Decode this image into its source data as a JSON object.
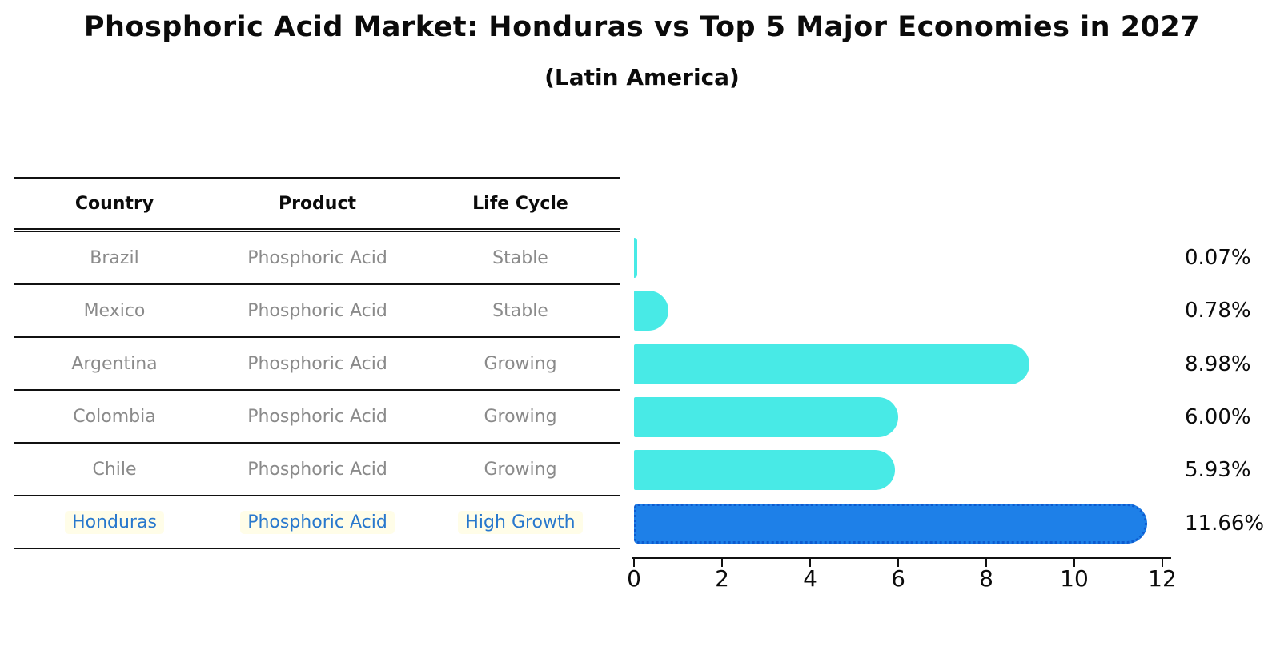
{
  "title": "Phosphoric Acid Market: Honduras vs Top 5 Major Economies in 2027",
  "subtitle": "(Latin America)",
  "table": {
    "headers": [
      "Country",
      "Product",
      "Life Cycle"
    ],
    "rows": [
      {
        "country": "Brazil",
        "product": "Phosphoric Acid",
        "life_cycle": "Stable",
        "highlight": false
      },
      {
        "country": "Mexico",
        "product": "Phosphoric Acid",
        "life_cycle": "Stable",
        "highlight": false
      },
      {
        "country": "Argentina",
        "product": "Phosphoric Acid",
        "life_cycle": "Growing",
        "highlight": false
      },
      {
        "country": "Colombia",
        "product": "Phosphoric Acid",
        "life_cycle": "Growing",
        "highlight": false
      },
      {
        "country": "Chile",
        "product": "Phosphoric Acid",
        "life_cycle": "Growing",
        "highlight": false
      },
      {
        "country": "Honduras",
        "product": "Phosphoric Acid",
        "life_cycle": "High Growth",
        "highlight": true
      }
    ]
  },
  "chart_data": {
    "type": "bar",
    "orientation": "horizontal",
    "title": "Phosphoric Acid Market: Honduras vs Top 5 Major Economies in 2027 (Latin America)",
    "categories": [
      "Brazil",
      "Mexico",
      "Argentina",
      "Colombia",
      "Chile",
      "Honduras"
    ],
    "values": [
      0.07,
      0.78,
      8.98,
      6.0,
      5.93,
      11.66
    ],
    "value_labels": [
      "0.07%",
      "0.78%",
      "8.98%",
      "6.00%",
      "5.93%",
      "11.66%"
    ],
    "xlabel": "",
    "ylabel": "",
    "xlim": [
      0,
      12
    ],
    "x_ticks": [
      0,
      2,
      4,
      6,
      8,
      10,
      12
    ],
    "grid": false,
    "legend": false,
    "bar_color": "#48EAE6",
    "highlight_index": 5,
    "highlight_color": "#1E80E8",
    "highlight_border_color": "#0D5BD0"
  },
  "colors": {
    "row_text": "#8A8A8A",
    "header_text": "#0B0B0B",
    "highlight_text": "#2878CD",
    "highlight_chip_bg": "#FFFDE8",
    "axis": "#111111",
    "background": "#FFFFFF"
  }
}
